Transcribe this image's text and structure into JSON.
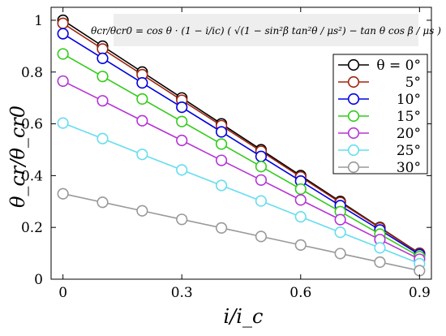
{
  "chart_data": {
    "type": "line",
    "title": "",
    "annotation": "θcr/θcr0 = cos θ · (1 − i/ic) ( √(1 − sin²β tan²θ / μs²) − tan θ cos β / μs )",
    "xlabel": "i/i_c",
    "ylabel": "θ_cr/θ_cr0",
    "xlim": [
      -0.03,
      0.93
    ],
    "ylim": [
      0,
      1.05
    ],
    "xticks": [
      0,
      0.3,
      0.6,
      0.9
    ],
    "xtick_labels": [
      "0",
      "0.3",
      "0.6",
      "0.9"
    ],
    "yticks": [
      0,
      0.2,
      0.4,
      0.6,
      0.8,
      1
    ],
    "ytick_labels": [
      "0",
      "0.2",
      "0.4",
      "0.6",
      "0.8",
      "1"
    ],
    "grid": false,
    "legend_position": "top-right",
    "x": [
      0,
      0.1,
      0.2,
      0.3,
      0.4,
      0.5,
      0.6,
      0.7,
      0.8,
      0.9
    ],
    "series": [
      {
        "name": "θ = 0°",
        "color": "#000000",
        "values": [
          1.0,
          0.9,
          0.8,
          0.7,
          0.6,
          0.5,
          0.4,
          0.3,
          0.2,
          0.1
        ]
      },
      {
        "name": "5°",
        "color": "#a0250f",
        "values": [
          0.988,
          0.889,
          0.79,
          0.691,
          0.593,
          0.494,
          0.395,
          0.296,
          0.198,
          0.099
        ]
      },
      {
        "name": "10°",
        "color": "#0000e0",
        "values": [
          0.948,
          0.853,
          0.758,
          0.664,
          0.569,
          0.474,
          0.379,
          0.284,
          0.19,
          0.095
        ]
      },
      {
        "name": "15°",
        "color": "#33cc1a",
        "values": [
          0.87,
          0.783,
          0.696,
          0.609,
          0.522,
          0.435,
          0.348,
          0.261,
          0.174,
          0.087
        ]
      },
      {
        "name": "20°",
        "color": "#b533d6",
        "values": [
          0.765,
          0.689,
          0.612,
          0.536,
          0.459,
          0.383,
          0.306,
          0.23,
          0.153,
          0.077
        ]
      },
      {
        "name": "25°",
        "color": "#66ddf0",
        "values": [
          0.603,
          0.543,
          0.482,
          0.422,
          0.362,
          0.302,
          0.241,
          0.181,
          0.121,
          0.06
        ]
      },
      {
        "name": "30°",
        "color": "#999999",
        "values": [
          0.33,
          0.297,
          0.264,
          0.231,
          0.198,
          0.165,
          0.132,
          0.099,
          0.066,
          0.033
        ]
      }
    ]
  }
}
